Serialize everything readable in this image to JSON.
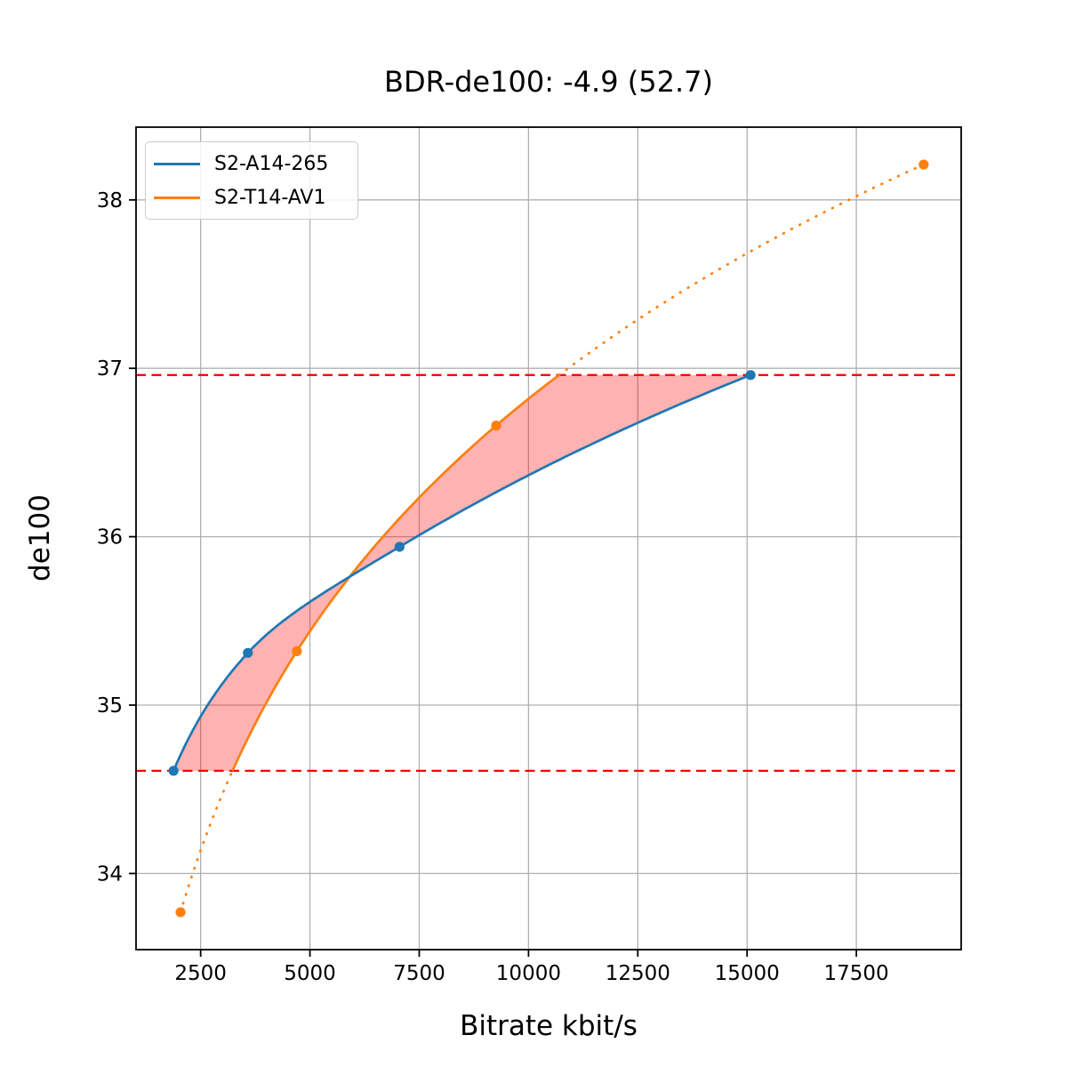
{
  "chart_data": {
    "type": "line",
    "title": "BDR-de100: -4.9 (52.7)",
    "xlabel": "Bitrate kbit/s",
    "ylabel": "de100",
    "xlim": [
      1022,
      19898
    ],
    "ylim": [
      33.548,
      38.432
    ],
    "x_ticks": [
      2500,
      5000,
      7500,
      10000,
      12500,
      15000,
      17500
    ],
    "y_ticks": [
      34,
      35,
      36,
      37,
      38
    ],
    "grid": true,
    "legend_position": "upper left",
    "series": [
      {
        "name": "S2-A14-265",
        "color": "#1f77b4",
        "line_style": "solid",
        "marker": "circle",
        "x": [
          1880,
          3580,
          7050,
          15080
        ],
        "y": [
          34.61,
          35.31,
          35.94,
          36.96
        ]
      },
      {
        "name": "S2-T14-AV1",
        "color": "#ff7f0e",
        "line_style": "solid inside overlap band, dotted outside",
        "marker": "circle",
        "x": [
          2040,
          4700,
          9260,
          19040
        ],
        "y": [
          33.77,
          35.32,
          36.66,
          38.21
        ]
      }
    ],
    "ref_lines": {
      "color": "#ff0000",
      "style": "dashed",
      "values": [
        34.61,
        36.96
      ],
      "meaning": "overlap quality band limits"
    },
    "shade": {
      "color": "#ff0000",
      "opacity": 0.3,
      "between": "the two interpolated curves inside the overlap band"
    },
    "colors": {
      "grid": "#b0b0b0",
      "spine": "#000000",
      "background": "#ffffff",
      "text": "#000000"
    }
  }
}
